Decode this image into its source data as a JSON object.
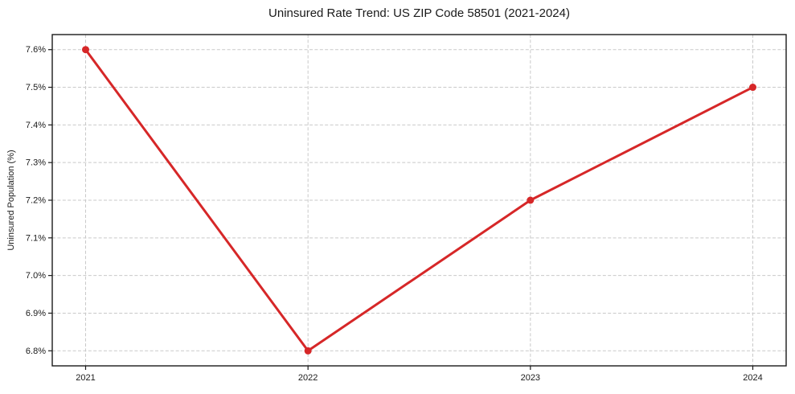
{
  "chart_data": {
    "type": "line",
    "title": "Uninsured Rate Trend: US ZIP Code 58501 (2021-2024)",
    "xlabel": "",
    "ylabel": "Uninsured Population (%)",
    "x": [
      2021,
      2022,
      2023,
      2024
    ],
    "values": [
      7.6,
      6.8,
      7.2,
      7.5
    ],
    "xticks": [
      {
        "value": 2021,
        "label": "2021"
      },
      {
        "value": 2022,
        "label": "2022"
      },
      {
        "value": 2023,
        "label": "2023"
      },
      {
        "value": 2024,
        "label": "2024"
      }
    ],
    "yticks": [
      {
        "value": 6.8,
        "label": "6.8%"
      },
      {
        "value": 6.9,
        "label": "6.9%"
      },
      {
        "value": 7.0,
        "label": "7.0%"
      },
      {
        "value": 7.1,
        "label": "7.1%"
      },
      {
        "value": 7.2,
        "label": "7.2%"
      },
      {
        "value": 7.3,
        "label": "7.3%"
      },
      {
        "value": 7.4,
        "label": "7.4%"
      },
      {
        "value": 7.5,
        "label": "7.5%"
      },
      {
        "value": 7.6,
        "label": "7.6%"
      }
    ],
    "xlim": [
      2020.85,
      2024.15
    ],
    "ylim": [
      6.76,
      7.64
    ],
    "grid": true,
    "grid_style": "dashed",
    "legend_position": "none",
    "line_color": "#d62728",
    "marker_color": "#d62728",
    "grid_color": "#c9c9c9",
    "axis_color": "#1a1a1a",
    "text_color": "#1a1a1a",
    "background_color": "#ffffff"
  }
}
